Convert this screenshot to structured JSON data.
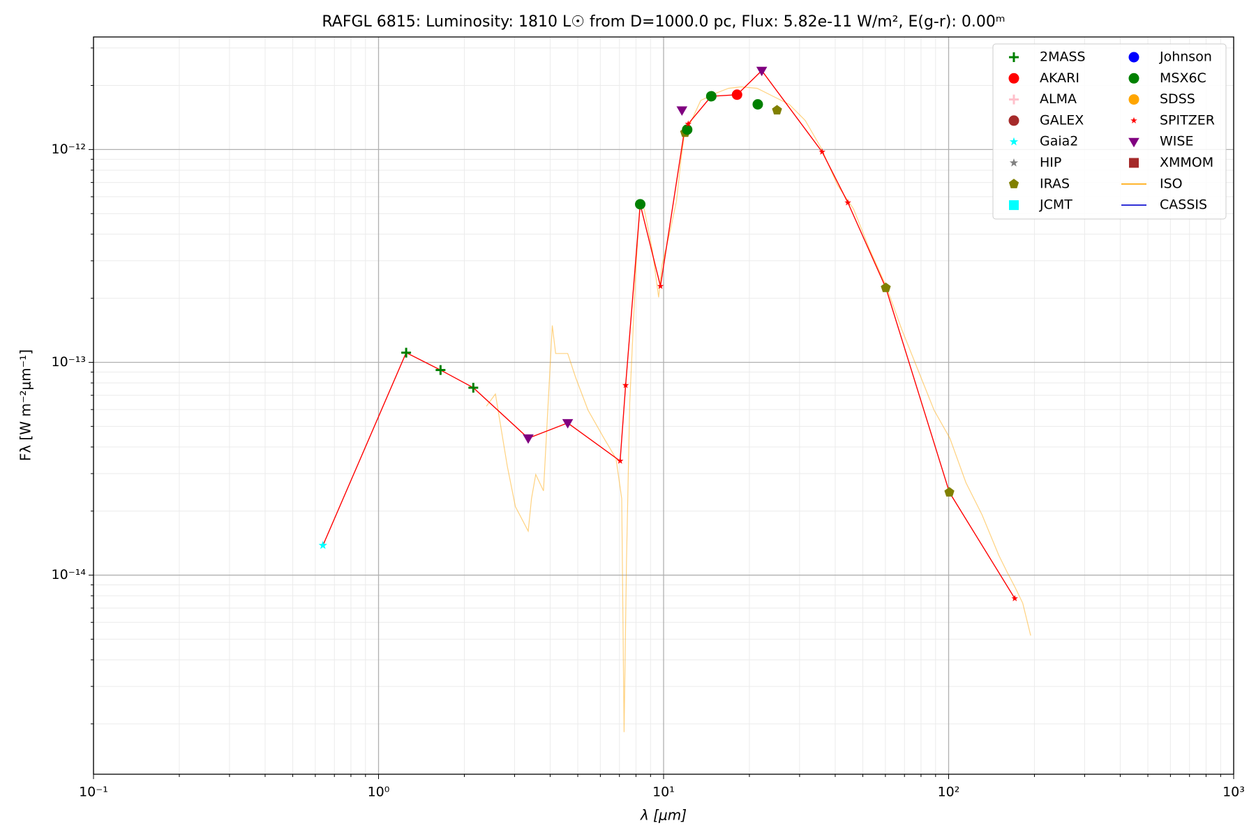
{
  "chart_data": {
    "type": "scatter",
    "title": "RAFGL 6815:  Luminosity: 1810 L☉ from D=1000.0 pc, Flux: 5.82e-11 W/m², E(g-r): 0.00ᵐ",
    "xlabel": "λ [μm]",
    "ylabel": "Fλ [W m⁻²μm⁻¹]",
    "xscale": "log",
    "yscale": "log",
    "grid": true,
    "legend": "upper right",
    "xlim": [
      0.1,
      1000
    ],
    "ylim": [
      1.16e-15,
      3.38e-12
    ],
    "xticks": [
      {
        "value": 0.1,
        "label": "10⁻¹"
      },
      {
        "value": 1,
        "label": "10⁰"
      },
      {
        "value": 10,
        "label": "10¹"
      },
      {
        "value": 100,
        "label": "10²"
      },
      {
        "value": 1000,
        "label": "10³"
      }
    ],
    "yticks": [
      {
        "value": 1e-14,
        "label": "10⁻¹⁴"
      },
      {
        "value": 1e-13,
        "label": "10⁻¹³"
      },
      {
        "value": 1e-12,
        "label": "10⁻¹²"
      }
    ],
    "xminorticks": [
      0.2,
      0.3,
      0.4,
      0.5,
      0.6,
      0.7,
      0.8,
      0.9,
      2,
      3,
      4,
      5,
      6,
      7,
      8,
      9,
      20,
      30,
      40,
      50,
      60,
      70,
      80,
      90,
      200,
      300,
      400,
      500,
      600,
      700,
      800,
      900
    ],
    "yminorticks": [
      2e-15,
      3e-15,
      4e-15,
      5e-15,
      6e-15,
      7e-15,
      8e-15,
      9e-15,
      2e-14,
      3e-14,
      4e-14,
      5e-14,
      6e-14,
      7e-14,
      8e-14,
      9e-14,
      2e-13,
      3e-13,
      4e-13,
      5e-13,
      6e-13,
      7e-13,
      8e-13,
      9e-13,
      2e-12,
      3e-12
    ],
    "line": {
      "color": "#ff0000",
      "x": [
        0.638,
        1.25,
        1.65,
        2.15,
        3.35,
        4.61,
        7.04,
        7.36,
        8.28,
        9.75,
        11.8,
        12.2,
        14.7,
        18.1,
        22.1,
        36.0,
        44.3,
        60.2,
        100.6,
        170.6
      ],
      "values": [
        1.38e-14,
        1.11e-13,
        9.2e-14,
        7.6e-14,
        4.4e-14,
        5.19e-14,
        3.44e-14,
        7.8e-14,
        5.53e-13,
        2.28e-13,
        1.2e-12,
        1.32e-12,
        1.78e-12,
        1.81e-12,
        2.35e-12,
        9.75e-13,
        5.63e-13,
        2.24e-13,
        2.45e-14,
        7.77e-15
      ]
    },
    "series": [
      {
        "name": "2MASS",
        "color": "#008000",
        "marker": "plus",
        "x": [
          1.25,
          1.65,
          2.15
        ],
        "values": [
          1.11e-13,
          9.2e-14,
          7.6e-14
        ]
      },
      {
        "name": "AKARI",
        "color": "#ff0000",
        "marker": "circle",
        "x": [
          18.1
        ],
        "values": [
          1.81e-12
        ]
      },
      {
        "name": "ALMA",
        "color": "#ffc0cb",
        "marker": "plus",
        "x": [],
        "values": []
      },
      {
        "name": "GALEX",
        "color": "#a52a2a",
        "marker": "circle",
        "x": [],
        "values": []
      },
      {
        "name": "Gaia2",
        "color": "#00ffff",
        "marker": "star",
        "x": [
          0.638
        ],
        "values": [
          1.38e-14
        ]
      },
      {
        "name": "HIP",
        "color": "#808080",
        "marker": "star",
        "x": [],
        "values": []
      },
      {
        "name": "IRAS",
        "color": "#808000",
        "marker": "pentagon",
        "x": [
          11.9,
          25.0,
          60.2,
          100.6
        ],
        "values": [
          1.2e-12,
          1.53e-12,
          2.24e-13,
          2.45e-14
        ]
      },
      {
        "name": "JCMT",
        "color": "#00ffff",
        "marker": "square",
        "x": [],
        "values": []
      },
      {
        "name": "Johnson",
        "color": "#0000ff",
        "marker": "circle",
        "x": [],
        "values": []
      },
      {
        "name": "MSX6C",
        "color": "#008000",
        "marker": "circle",
        "x": [
          8.28,
          12.1,
          14.7,
          21.4
        ],
        "values": [
          5.53e-13,
          1.24e-12,
          1.78e-12,
          1.63e-12
        ]
      },
      {
        "name": "SDSS",
        "color": "#ffa500",
        "marker": "circle",
        "x": [],
        "values": []
      },
      {
        "name": "SPITZER",
        "color": "#ff0000",
        "marker": "smallstar",
        "x": [
          7.04,
          7.36,
          9.75,
          12.2,
          36.0,
          44.3,
          170.6
        ],
        "values": [
          3.44e-14,
          7.8e-14,
          2.28e-13,
          1.32e-12,
          9.75e-13,
          5.63e-13,
          7.77e-15
        ]
      },
      {
        "name": "WISE",
        "color": "#800080",
        "marker": "triangle",
        "x": [
          3.35,
          4.61,
          11.6,
          22.1
        ],
        "values": [
          4.4e-14,
          5.19e-14,
          1.53e-12,
          2.35e-12
        ]
      },
      {
        "name": "XMMOM",
        "color": "#a52a2a",
        "marker": "square",
        "x": [],
        "values": []
      },
      {
        "name": "ISO",
        "color": "#ffa500",
        "marker": "line",
        "x": [
          2.39,
          2.57,
          2.83,
          3.02,
          3.35,
          3.44,
          3.56,
          3.79,
          4.07,
          4.18,
          4.61,
          4.92,
          5.43,
          6.18,
          6.81,
          7.13,
          7.27,
          7.41,
          7.61,
          8.01,
          8.28,
          8.55,
          9.12,
          9.61,
          9.87,
          10.5,
          11.1,
          11.5,
          11.8,
          13.5,
          15.4,
          16.9,
          18.7,
          21.3,
          24.2,
          27.6,
          31.4,
          35.8,
          40.7,
          46.4,
          52.8,
          60.2,
          68.6,
          78.1,
          88.9,
          101,
          115,
          131,
          150,
          160,
          171,
          182,
          194
        ],
        "values": [
          6.22e-14,
          7.1e-14,
          3.24e-14,
          2.1e-14,
          1.61e-14,
          2.29e-14,
          2.97e-14,
          2.49e-14,
          1.49e-13,
          1.1e-13,
          1.1e-13,
          8.44e-14,
          5.96e-14,
          4.4e-14,
          3.53e-14,
          2.29e-14,
          1.83e-15,
          1.14e-14,
          6.5e-14,
          2.86e-13,
          5.73e-13,
          5.25e-13,
          3.4e-13,
          2.02e-13,
          2.86e-13,
          4.05e-13,
          5.73e-13,
          8.85e-13,
          1.15e-12,
          1.7e-12,
          1.85e-12,
          1.94e-12,
          1.97e-12,
          1.94e-12,
          1.78e-12,
          1.63e-12,
          1.37e-12,
          1.01e-12,
          6.82e-13,
          5.25e-13,
          3.4e-13,
          2.3e-13,
          1.42e-13,
          9.2e-14,
          5.96e-14,
          4.4e-14,
          2.72e-14,
          1.92e-14,
          1.24e-14,
          1.04e-14,
          8.77e-15,
          7.38e-15,
          5.2e-15
        ]
      },
      {
        "name": "CASSIS",
        "color": "#0000cd",
        "marker": "line",
        "x": [],
        "values": []
      }
    ]
  }
}
